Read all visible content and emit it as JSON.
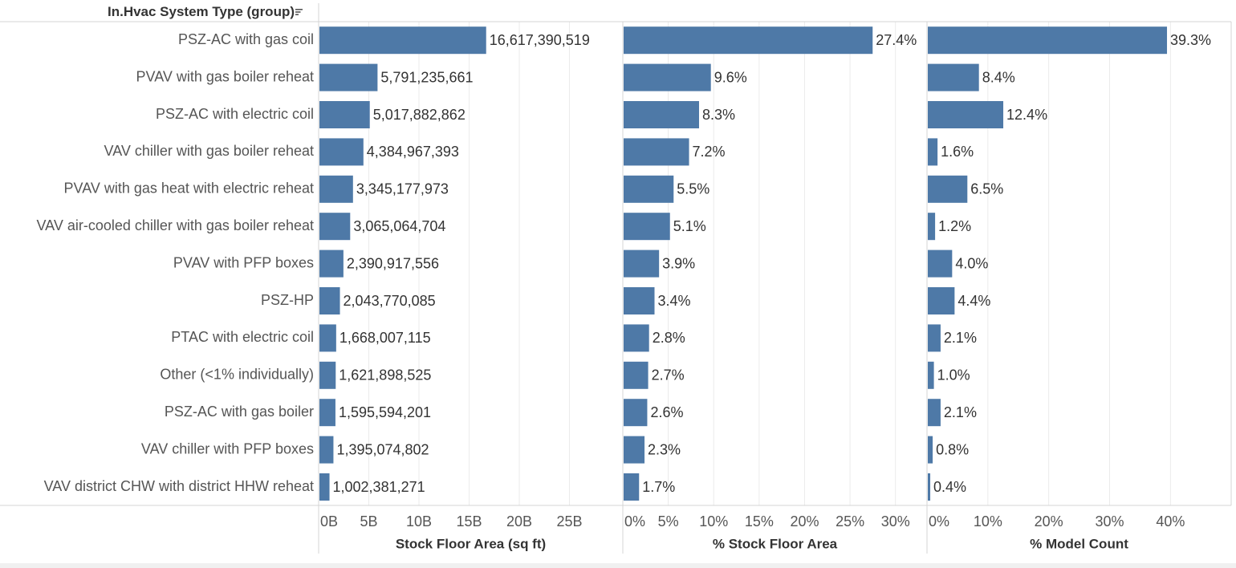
{
  "row_header": "In.Hvac System Type (group)",
  "icons": {
    "sort": "sort-descending-icon"
  },
  "colors": {
    "bar": "#4e79a7",
    "text": "#333333",
    "grid": "#ebebeb",
    "border": "#d4d4d4"
  },
  "chart_data": [
    {
      "type": "bar",
      "orientation": "horizontal",
      "xlabel": "Stock Floor Area (sq ft)",
      "xlim": [
        0,
        28000000000
      ],
      "ticks": [
        0,
        5000000000,
        10000000000,
        15000000000,
        20000000000,
        25000000000
      ],
      "tick_labels": [
        "0B",
        "5B",
        "10B",
        "15B",
        "20B",
        "25B"
      ],
      "grid": true,
      "categories": [
        "PSZ-AC with gas coil",
        "PVAV with gas boiler reheat",
        "PSZ-AC with electric coil",
        "VAV chiller with gas boiler reheat",
        "PVAV with gas heat with electric reheat",
        "VAV air-cooled chiller with gas boiler reheat",
        "PVAV with PFP boxes",
        "PSZ-HP",
        "PTAC with electric coil",
        "Other (<1% individually)",
        "PSZ-AC with gas boiler",
        "VAV chiller with PFP boxes",
        "VAV district CHW with district HHW reheat"
      ],
      "values": [
        16617390519,
        5791235661,
        5017882862,
        4384967393,
        3345177973,
        3065064704,
        2390917556,
        2043770085,
        1668007115,
        1621898525,
        1595594201,
        1395074802,
        1002381271
      ],
      "value_labels": [
        "16,617,390,519",
        "5,791,235,661",
        "5,017,882,862",
        "4,384,967,393",
        "3,345,177,973",
        "3,065,064,704",
        "2,390,917,556",
        "2,043,770,085",
        "1,668,007,115",
        "1,621,898,525",
        "1,595,594,201",
        "1,395,074,802",
        "1,002,381,271"
      ]
    },
    {
      "type": "bar",
      "orientation": "horizontal",
      "xlabel": "% Stock Floor Area",
      "xlim": [
        0,
        34
      ],
      "ticks": [
        0,
        5,
        10,
        15,
        20,
        25,
        30
      ],
      "tick_labels": [
        "0%",
        "5%",
        "10%",
        "15%",
        "20%",
        "25%",
        "30%"
      ],
      "grid": true,
      "values": [
        27.4,
        9.6,
        8.3,
        7.2,
        5.5,
        5.1,
        3.9,
        3.4,
        2.8,
        2.7,
        2.6,
        2.3,
        1.7
      ],
      "value_labels": [
        "27.4%",
        "9.6%",
        "8.3%",
        "7.2%",
        "5.5%",
        "5.1%",
        "3.9%",
        "3.4%",
        "2.8%",
        "2.7%",
        "2.6%",
        "2.3%",
        "1.7%"
      ]
    },
    {
      "type": "bar",
      "orientation": "horizontal",
      "xlabel": "% Model Count",
      "xlim": [
        0,
        48
      ],
      "ticks": [
        0,
        10,
        20,
        30,
        40
      ],
      "tick_labels": [
        "0%",
        "10%",
        "20%",
        "30%",
        "40%"
      ],
      "grid": true,
      "values": [
        39.3,
        8.4,
        12.4,
        1.6,
        6.5,
        1.2,
        4.0,
        4.4,
        2.1,
        1.0,
        2.1,
        0.8,
        0.4
      ],
      "value_labels": [
        "39.3%",
        "8.4%",
        "12.4%",
        "1.6%",
        "6.5%",
        "1.2%",
        "4.0%",
        "4.4%",
        "2.1%",
        "1.0%",
        "2.1%",
        "0.8%",
        "0.4%"
      ]
    }
  ]
}
